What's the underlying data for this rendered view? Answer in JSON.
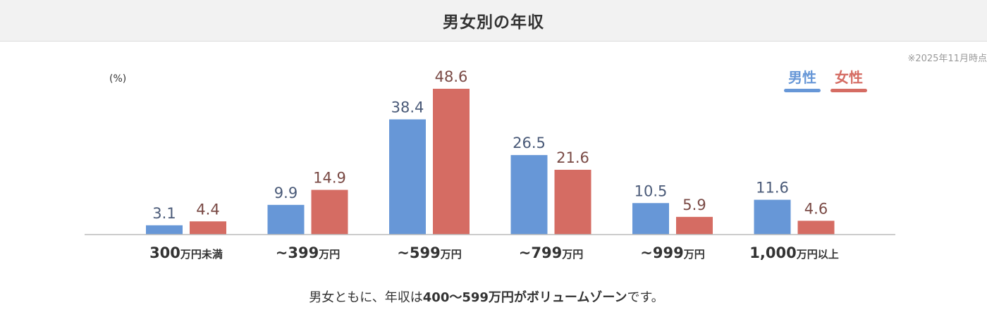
{
  "header": {
    "title": "男女別の年収"
  },
  "as_of": "※2025年11月時点",
  "unit_label": "(%)",
  "note": {
    "prefix": "男女ともに、年収は",
    "highlight": "400〜599万円がボリュームゾーン",
    "suffix": "です。"
  },
  "colors": {
    "male": "#6797d7",
    "female": "#d56c63",
    "male_value_text": "#4a5a78",
    "female_value_text": "#7a4a45",
    "axis": "#bbbbbb"
  },
  "chart_data": {
    "type": "bar",
    "title": "男女別の年収",
    "ylabel": "(%)",
    "ylim": [
      0,
      50
    ],
    "categories": [
      {
        "num": "300",
        "suffix": "万円未満"
      },
      {
        "num": "~399",
        "suffix": "万円"
      },
      {
        "num": "~599",
        "suffix": "万円"
      },
      {
        "num": "~799",
        "suffix": "万円"
      },
      {
        "num": "~999",
        "suffix": "万円"
      },
      {
        "num": "1,000",
        "suffix": "万円以上"
      }
    ],
    "series": [
      {
        "name": "男性",
        "values": [
          3.1,
          9.9,
          38.4,
          26.5,
          10.5,
          11.6
        ]
      },
      {
        "name": "女性",
        "values": [
          4.4,
          14.9,
          48.6,
          21.6,
          5.9,
          4.6
        ]
      }
    ],
    "legend_position": "top-right",
    "grid": false
  }
}
